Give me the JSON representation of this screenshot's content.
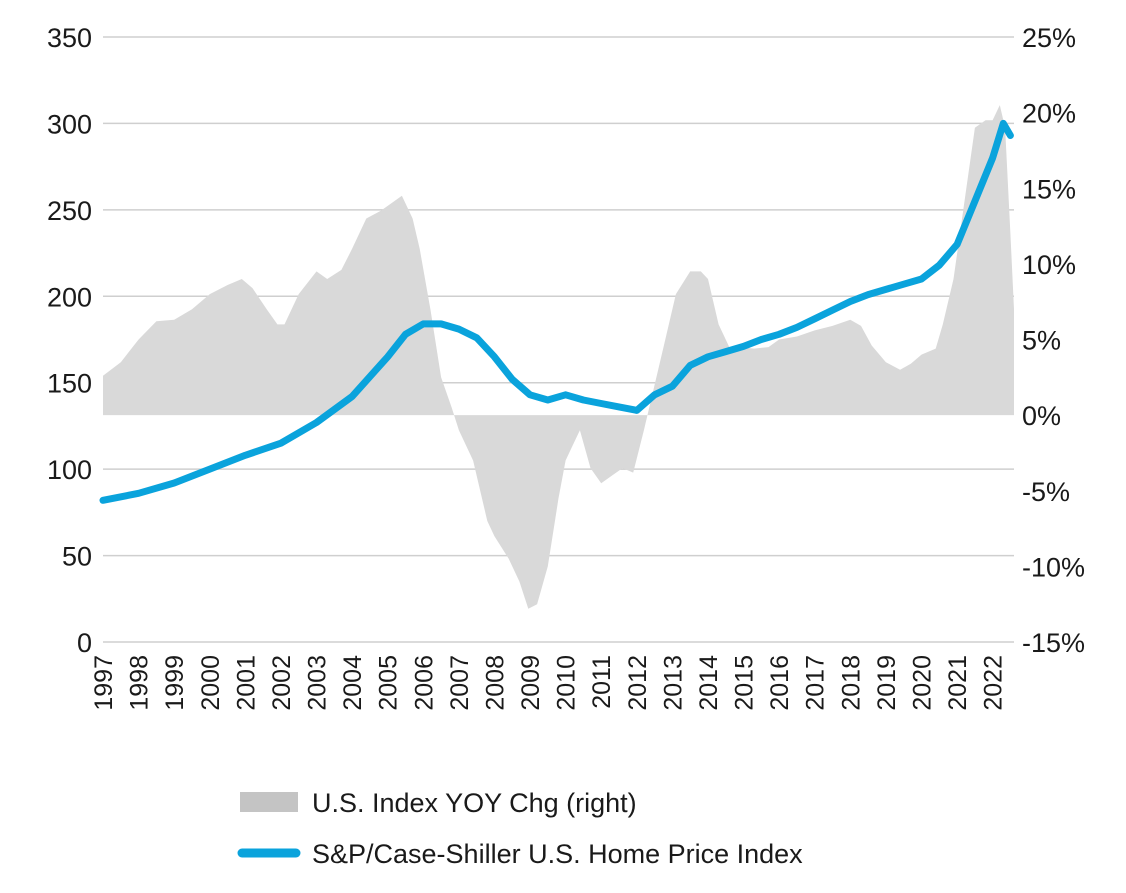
{
  "chart_data": {
    "type": "line",
    "title": "",
    "xlabel": "",
    "ylabel": "",
    "x_range": [
      1997,
      2022.6
    ],
    "x_ticks": [
      "1997",
      "1998",
      "1999",
      "2000",
      "2001",
      "2002",
      "2003",
      "2004",
      "2005",
      "2006",
      "2007",
      "2008",
      "2009",
      "2010",
      "2011",
      "2012",
      "2013",
      "2014",
      "2015",
      "2016",
      "2017",
      "2018",
      "2019",
      "2020",
      "2021",
      "2022"
    ],
    "y_left": {
      "range": [
        0,
        350
      ],
      "ticks": [
        0,
        50,
        100,
        150,
        200,
        250,
        300,
        350
      ],
      "tick_labels": [
        "0",
        "50",
        "100",
        "150",
        "200",
        "250",
        "300",
        "350"
      ]
    },
    "y_right": {
      "range": [
        -15,
        25
      ],
      "ticks": [
        -15,
        -10,
        -5,
        0,
        5,
        10,
        15,
        20,
        25
      ],
      "tick_labels": [
        "-15%",
        "-10%",
        "-5%",
        "0%",
        "5%",
        "10%",
        "15%",
        "20%",
        "25%"
      ]
    },
    "grid": true,
    "legend_position": "bottom",
    "series": [
      {
        "name": "U.S. Index YOY Chg (right)",
        "type": "area",
        "axis": "right",
        "color": "#d9d9d9",
        "legend_color": "#c4c4c4",
        "points": [
          [
            1997.0,
            2.6
          ],
          [
            1997.5,
            3.5
          ],
          [
            1998.0,
            5.0
          ],
          [
            1998.5,
            6.2
          ],
          [
            1999.0,
            6.3
          ],
          [
            1999.5,
            7.0
          ],
          [
            2000.0,
            8.0
          ],
          [
            2000.5,
            8.6
          ],
          [
            2000.9,
            9.0
          ],
          [
            2001.2,
            8.4
          ],
          [
            2001.6,
            7.0
          ],
          [
            2001.9,
            6.0
          ],
          [
            2002.1,
            6.0
          ],
          [
            2002.5,
            8.0
          ],
          [
            2003.0,
            9.5
          ],
          [
            2003.3,
            9.0
          ],
          [
            2003.7,
            9.6
          ],
          [
            2004.0,
            11.0
          ],
          [
            2004.4,
            13.0
          ],
          [
            2004.8,
            13.5
          ],
          [
            2005.1,
            14.0
          ],
          [
            2005.4,
            14.5
          ],
          [
            2005.7,
            13.0
          ],
          [
            2005.9,
            11.0
          ],
          [
            2006.2,
            7.0
          ],
          [
            2006.5,
            2.5
          ],
          [
            2006.8,
            0.5
          ],
          [
            2007.0,
            -1.0
          ],
          [
            2007.4,
            -3.0
          ],
          [
            2007.8,
            -7.0
          ],
          [
            2008.0,
            -8.0
          ],
          [
            2008.4,
            -9.5
          ],
          [
            2008.7,
            -11.0
          ],
          [
            2008.95,
            -12.8
          ],
          [
            2009.2,
            -12.5
          ],
          [
            2009.5,
            -10.0
          ],
          [
            2009.8,
            -5.5
          ],
          [
            2010.0,
            -3.0
          ],
          [
            2010.2,
            -2.0
          ],
          [
            2010.4,
            -1.0
          ],
          [
            2010.7,
            -3.5
          ],
          [
            2011.0,
            -4.5
          ],
          [
            2011.3,
            -4.0
          ],
          [
            2011.6,
            -3.5
          ],
          [
            2011.9,
            -3.8
          ],
          [
            2012.2,
            -1.0
          ],
          [
            2012.5,
            2.0
          ],
          [
            2012.8,
            5.0
          ],
          [
            2013.1,
            8.0
          ],
          [
            2013.5,
            9.5
          ],
          [
            2013.8,
            9.5
          ],
          [
            2014.0,
            9.0
          ],
          [
            2014.3,
            6.0
          ],
          [
            2014.6,
            4.5
          ],
          [
            2014.9,
            4.5
          ],
          [
            2015.3,
            4.4
          ],
          [
            2015.7,
            4.5
          ],
          [
            2016.0,
            5.0
          ],
          [
            2016.5,
            5.2
          ],
          [
            2017.0,
            5.6
          ],
          [
            2017.5,
            5.9
          ],
          [
            2018.0,
            6.3
          ],
          [
            2018.3,
            5.9
          ],
          [
            2018.6,
            4.6
          ],
          [
            2019.0,
            3.5
          ],
          [
            2019.4,
            3.0
          ],
          [
            2019.7,
            3.4
          ],
          [
            2020.0,
            4.0
          ],
          [
            2020.4,
            4.4
          ],
          [
            2020.6,
            6.0
          ],
          [
            2020.9,
            9.0
          ],
          [
            2021.2,
            14.0
          ],
          [
            2021.5,
            19.0
          ],
          [
            2021.8,
            19.5
          ],
          [
            2022.0,
            19.5
          ],
          [
            2022.2,
            20.5
          ],
          [
            2022.35,
            19.0
          ],
          [
            2022.5,
            12.0
          ],
          [
            2022.6,
            7.0
          ]
        ]
      },
      {
        "name": "S&P/Case-Shiller U.S. Home Price Index",
        "type": "line",
        "axis": "left",
        "color": "#0aa3dc",
        "points": [
          [
            1997.0,
            82.0
          ],
          [
            1998.0,
            86.0
          ],
          [
            1999.0,
            92.0
          ],
          [
            2000.0,
            100.0
          ],
          [
            2001.0,
            108.0
          ],
          [
            2002.0,
            115.0
          ],
          [
            2003.0,
            127.0
          ],
          [
            2004.0,
            142.0
          ],
          [
            2005.0,
            165.0
          ],
          [
            2005.5,
            178.0
          ],
          [
            2006.0,
            184.0
          ],
          [
            2006.5,
            184.0
          ],
          [
            2007.0,
            181.0
          ],
          [
            2007.5,
            176.0
          ],
          [
            2008.0,
            165.0
          ],
          [
            2008.5,
            152.0
          ],
          [
            2009.0,
            143.0
          ],
          [
            2009.5,
            140.0
          ],
          [
            2010.0,
            143.0
          ],
          [
            2010.5,
            140.0
          ],
          [
            2011.0,
            138.0
          ],
          [
            2011.5,
            136.0
          ],
          [
            2012.0,
            134.0
          ],
          [
            2012.5,
            143.0
          ],
          [
            2013.0,
            148.0
          ],
          [
            2013.5,
            160.0
          ],
          [
            2014.0,
            165.0
          ],
          [
            2014.5,
            168.0
          ],
          [
            2015.0,
            171.0
          ],
          [
            2015.5,
            175.0
          ],
          [
            2016.0,
            178.0
          ],
          [
            2016.5,
            182.0
          ],
          [
            2017.0,
            187.0
          ],
          [
            2017.5,
            192.0
          ],
          [
            2018.0,
            197.0
          ],
          [
            2018.5,
            201.0
          ],
          [
            2019.0,
            204.0
          ],
          [
            2019.5,
            207.0
          ],
          [
            2020.0,
            210.0
          ],
          [
            2020.5,
            218.0
          ],
          [
            2021.0,
            230.0
          ],
          [
            2021.5,
            255.0
          ],
          [
            2022.0,
            280.0
          ],
          [
            2022.3,
            300.0
          ],
          [
            2022.5,
            293.0
          ]
        ]
      }
    ]
  }
}
